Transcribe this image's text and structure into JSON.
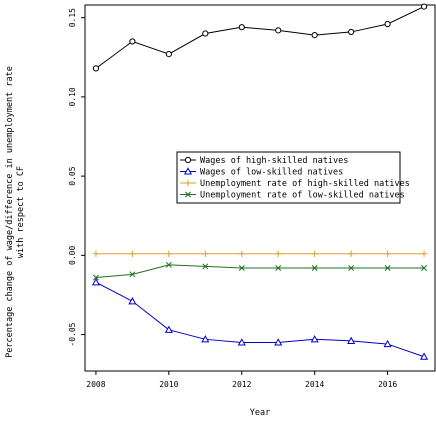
{
  "chart_data": {
    "type": "line",
    "xlabel": "Year",
    "ylabel": "Percentage change of wage/difference in unemployment rate with respect to CF",
    "xlim": [
      2007.7,
      2017.3
    ],
    "ylim": [
      -0.073,
      0.158
    ],
    "x_ticks": [
      2008,
      2010,
      2012,
      2014,
      2016
    ],
    "y_ticks": [
      -0.05,
      0.0,
      0.05,
      0.1,
      0.15
    ],
    "y_tick_labels": [
      "-0.05",
      "0.00",
      "0.05",
      "0.10",
      "0.15"
    ],
    "grid": false,
    "legend_position": "middle-right",
    "x": [
      2008,
      2009,
      2010,
      2011,
      2012,
      2013,
      2014,
      2015,
      2016,
      2017
    ],
    "series": [
      {
        "name": "Wages of high-skilled natives",
        "marker": "circle",
        "color": "#000000",
        "values": [
          0.118,
          0.135,
          0.127,
          0.14,
          0.144,
          0.142,
          0.139,
          0.141,
          0.146,
          0.157
        ]
      },
      {
        "name": "Wages of low-skilled natives",
        "marker": "triangle",
        "color": "#0000cc",
        "values": [
          -0.017,
          -0.029,
          -0.047,
          -0.053,
          -0.055,
          -0.055,
          -0.053,
          -0.054,
          -0.056,
          -0.064
        ]
      },
      {
        "name": "Unemployment rate of high-skilled natives",
        "marker": "plus",
        "color": "#e0a030",
        "values": [
          0.001,
          0.001,
          0.001,
          0.001,
          0.001,
          0.001,
          0.001,
          0.001,
          0.001,
          0.001
        ]
      },
      {
        "name": "Unemployment rate of low-skilled natives",
        "marker": "x",
        "color": "#207020",
        "values": [
          -0.014,
          -0.012,
          -0.006,
          -0.007,
          -0.008,
          -0.008,
          -0.008,
          -0.008,
          -0.008,
          -0.008
        ]
      }
    ]
  }
}
